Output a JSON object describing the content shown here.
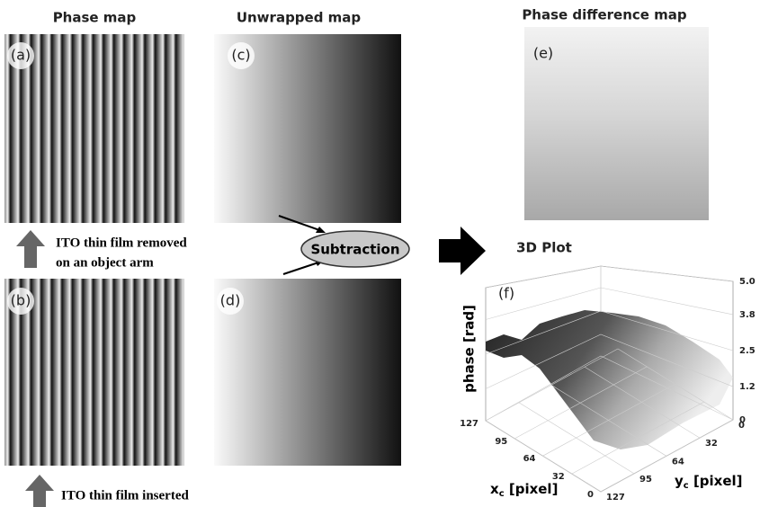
{
  "columns": {
    "phase_map": "Phase map",
    "unwrapped_map": "Unwrapped map",
    "difference_map": "Phase difference map"
  },
  "panels": {
    "a": "(a)",
    "b": "(b)",
    "c": "(c)",
    "d": "(d)",
    "e": "(e)",
    "f": "(f)"
  },
  "notes": {
    "removed_1": "ITO thin film removed",
    "removed_2": "on an object arm",
    "inserted": "ITO thin film inserted",
    "operation": "Subtraction"
  },
  "plot": {
    "title": "3D Plot",
    "zlabel": "phase [rad]",
    "xlabel": "x",
    "xlabel_sub": "c",
    "xlabel_unit": " [pixel]",
    "ylabel": "y",
    "ylabel_sub": "c",
    "ylabel_unit": " [pixel]",
    "zlim": [
      0,
      5
    ],
    "zticks": [
      0,
      1.2,
      2.5,
      3.8,
      {
        "value": 5,
        "label": "5.0"
      }
    ],
    "xlim": [
      0,
      127
    ],
    "xticks": [
      127,
      95,
      64,
      32,
      0
    ],
    "ylim": [
      0,
      127
    ],
    "yticks": [
      0,
      32,
      64,
      95,
      127
    ]
  }
}
